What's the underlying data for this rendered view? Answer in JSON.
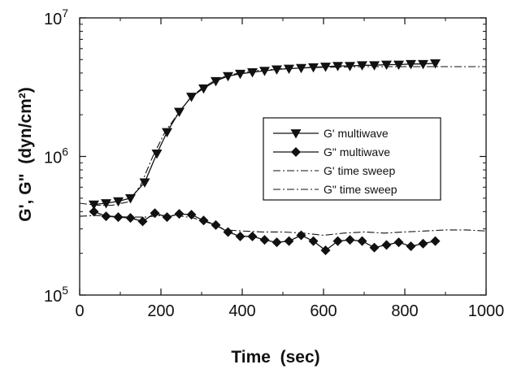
{
  "chart_data": {
    "type": "line",
    "xlabel": "Time  (sec)",
    "ylabel": "G', G\"  (dyn/cm²)",
    "xlim": [
      0,
      1000
    ],
    "ylim": [
      100000,
      10000000
    ],
    "yscale": "log",
    "x_ticks": [
      "0",
      "200",
      "400",
      "600",
      "800",
      "1000"
    ],
    "y_ticks": [
      {
        "value": 100000,
        "base": "10",
        "exp": "5"
      },
      {
        "value": 1000000,
        "base": "10",
        "exp": "6"
      },
      {
        "value": 10000000,
        "base": "10",
        "exp": "7"
      }
    ],
    "legend_position": "center-right",
    "grid": false,
    "series": [
      {
        "name": "G' multiwave",
        "style": "solid",
        "marker": "triangle-down",
        "x": [
          35,
          65,
          95,
          125,
          160,
          190,
          215,
          245,
          275,
          305,
          335,
          365,
          395,
          425,
          455,
          485,
          515,
          545,
          575,
          605,
          635,
          665,
          695,
          725,
          755,
          785,
          815,
          845,
          875
        ],
        "y": [
          450000,
          460000,
          475000,
          500000,
          650000,
          1050000,
          1500000,
          2100000,
          2700000,
          3100000,
          3500000,
          3800000,
          3950000,
          4050000,
          4150000,
          4250000,
          4300000,
          4350000,
          4400000,
          4450000,
          4500000,
          4500000,
          4550000,
          4550000,
          4600000,
          4600000,
          4650000,
          4650000,
          4700000
        ]
      },
      {
        "name": "G\" multiwave",
        "style": "solid",
        "marker": "diamond",
        "x": [
          35,
          65,
          95,
          125,
          155,
          185,
          215,
          245,
          275,
          305,
          335,
          365,
          395,
          425,
          455,
          485,
          515,
          545,
          575,
          605,
          635,
          665,
          695,
          725,
          755,
          785,
          815,
          845,
          875
        ],
        "y": [
          400000,
          370000,
          365000,
          360000,
          340000,
          390000,
          365000,
          385000,
          380000,
          345000,
          320000,
          285000,
          265000,
          265000,
          250000,
          240000,
          245000,
          270000,
          245000,
          210000,
          245000,
          250000,
          245000,
          220000,
          230000,
          240000,
          225000,
          235000,
          245000
        ]
      },
      {
        "name": "G' time sweep",
        "style": "dashdot",
        "marker": "none",
        "x": [
          0,
          40,
          80,
          120,
          150,
          180,
          210,
          240,
          270,
          300,
          330,
          360,
          400,
          450,
          500,
          600,
          700,
          800,
          900,
          1000
        ],
        "y": [
          460000,
          445000,
          445000,
          470000,
          620000,
          1000000,
          1500000,
          2000000,
          2600000,
          3100000,
          3500000,
          3800000,
          4050000,
          4200000,
          4300000,
          4400000,
          4450000,
          4450000,
          4450000,
          4450000
        ]
      },
      {
        "name": "G\" time sweep",
        "style": "dashdot",
        "marker": "none",
        "x": [
          0,
          40,
          80,
          120,
          160,
          200,
          240,
          280,
          320,
          360,
          400,
          450,
          500,
          550,
          600,
          650,
          700,
          750,
          800,
          850,
          900,
          950,
          1000
        ],
        "y": [
          370000,
          375000,
          370000,
          365000,
          365000,
          375000,
          375000,
          360000,
          330000,
          295000,
          290000,
          285000,
          285000,
          280000,
          270000,
          280000,
          285000,
          280000,
          285000,
          290000,
          295000,
          295000,
          290000
        ]
      }
    ]
  }
}
